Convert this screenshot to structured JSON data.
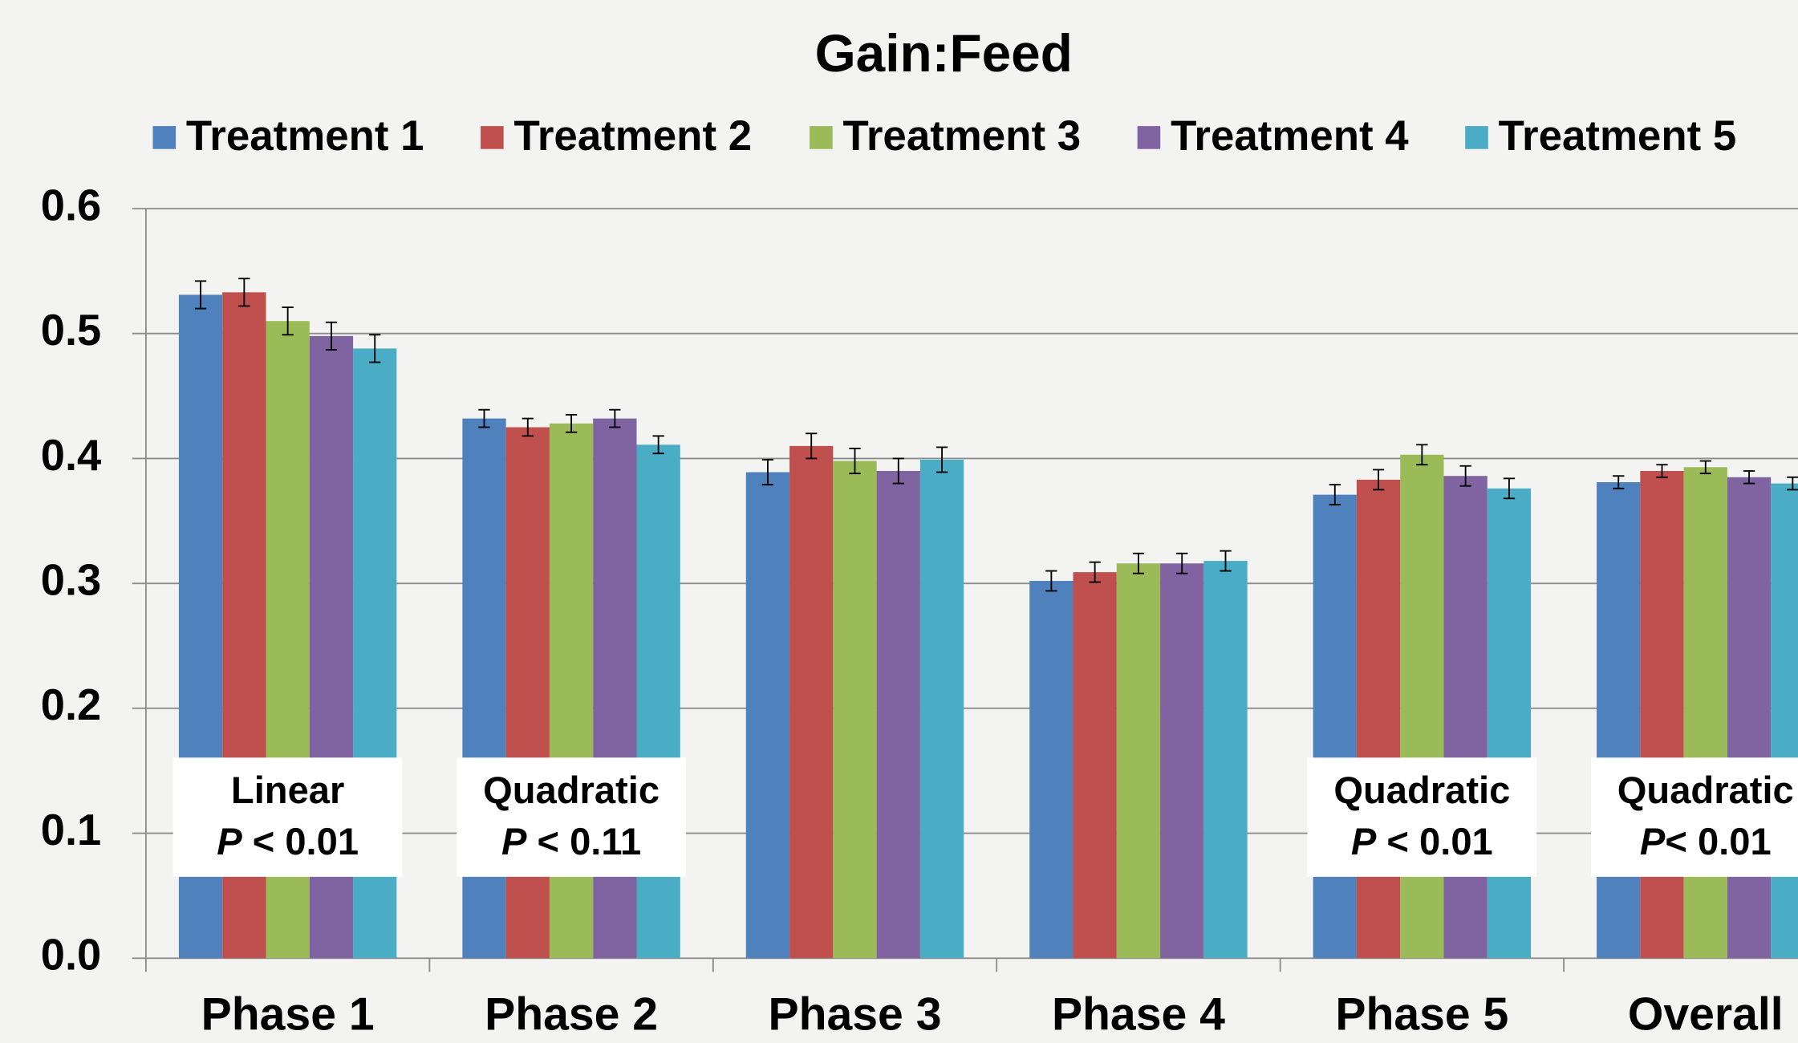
{
  "chart_data": {
    "type": "bar",
    "title": "Gain:Feed",
    "categories": [
      "Phase 1",
      "Phase 2",
      "Phase 3",
      "Phase 4",
      "Phase 5",
      "Overall"
    ],
    "series": [
      {
        "name": "Treatment 1",
        "color": "#4f81bd",
        "values": [
          0.531,
          0.432,
          0.389,
          0.302,
          0.371,
          0.381
        ],
        "errors": [
          0.011,
          0.007,
          0.01,
          0.008,
          0.008,
          0.005
        ]
      },
      {
        "name": "Treatment 2",
        "color": "#c0504d",
        "values": [
          0.533,
          0.425,
          0.41,
          0.309,
          0.383,
          0.39
        ],
        "errors": [
          0.011,
          0.007,
          0.01,
          0.008,
          0.008,
          0.005
        ]
      },
      {
        "name": "Treatment 3",
        "color": "#9bbb59",
        "values": [
          0.51,
          0.428,
          0.398,
          0.316,
          0.403,
          0.393
        ],
        "errors": [
          0.011,
          0.007,
          0.01,
          0.008,
          0.008,
          0.005
        ]
      },
      {
        "name": "Treatment 4",
        "color": "#8064a2",
        "values": [
          0.498,
          0.432,
          0.39,
          0.316,
          0.386,
          0.385
        ],
        "errors": [
          0.011,
          0.007,
          0.01,
          0.008,
          0.008,
          0.005
        ]
      },
      {
        "name": "Treatment 5",
        "color": "#4bacc6",
        "values": [
          0.488,
          0.411,
          0.399,
          0.318,
          0.376,
          0.38
        ],
        "errors": [
          0.011,
          0.007,
          0.01,
          0.008,
          0.008,
          0.005
        ]
      }
    ],
    "annotations": [
      {
        "test": "Linear",
        "p_symbol": "P",
        "p_text": " < 0.01"
      },
      {
        "test": "Quadratic",
        "p_symbol": "P",
        "p_text": " < 0.11"
      },
      null,
      null,
      {
        "test": "Quadratic",
        "p_symbol": "P",
        "p_text": " < 0.01"
      },
      {
        "test": "Quadratic",
        "p_symbol": "P",
        "p_text": "< 0.01"
      }
    ],
    "ylim": [
      0,
      0.6
    ],
    "yticks": [
      {
        "value": 0,
        "label": "0.0"
      },
      0.1,
      0.2,
      0.3,
      0.4,
      0.5,
      0.6
    ],
    "grid": true,
    "legend": "top"
  }
}
